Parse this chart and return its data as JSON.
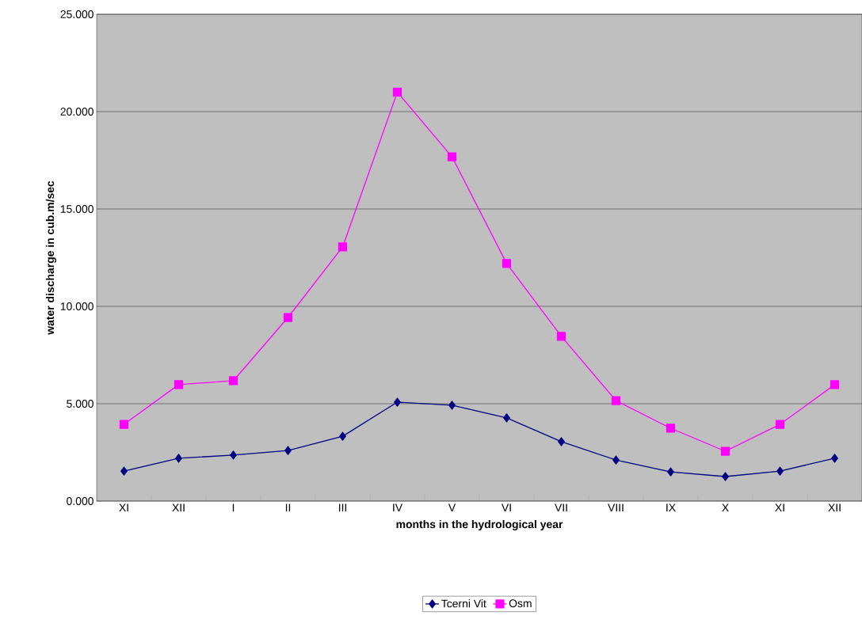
{
  "chart_data": {
    "type": "line",
    "xlabel": "months in the hydrological year",
    "ylabel": "water discharge in cub.m/sec",
    "categories": [
      "XI",
      "XII",
      "I",
      "II",
      "III",
      "IV",
      "V",
      "VI",
      "VII",
      "VIII",
      "IX",
      "X",
      "XI",
      "XII"
    ],
    "series": [
      {
        "name": "Tcerni Vit",
        "color": "#000080",
        "marker": "diamond",
        "values": [
          1.54,
          2.2,
          2.36,
          2.6,
          3.33,
          5.08,
          4.92,
          4.27,
          3.05,
          2.11,
          1.5,
          1.26,
          1.54,
          2.2
        ]
      },
      {
        "name": "Osm",
        "color": "#ff00ff",
        "marker": "square",
        "values": [
          3.94,
          5.98,
          6.18,
          9.43,
          13.05,
          21.0,
          17.68,
          12.2,
          8.46,
          5.16,
          3.74,
          2.56,
          3.94,
          5.98
        ]
      }
    ],
    "ylim": [
      0,
      25
    ],
    "yticks": [
      {
        "value": 0,
        "label": "0.000"
      },
      {
        "value": 5,
        "label": "5.000"
      },
      {
        "value": 10,
        "label": "10.000"
      },
      {
        "value": 15,
        "label": "15.000"
      },
      {
        "value": 20,
        "label": "20.000"
      },
      {
        "value": 25,
        "label": "25.000"
      }
    ],
    "grid": "y",
    "legend": "bottom",
    "line_style": "solid"
  }
}
